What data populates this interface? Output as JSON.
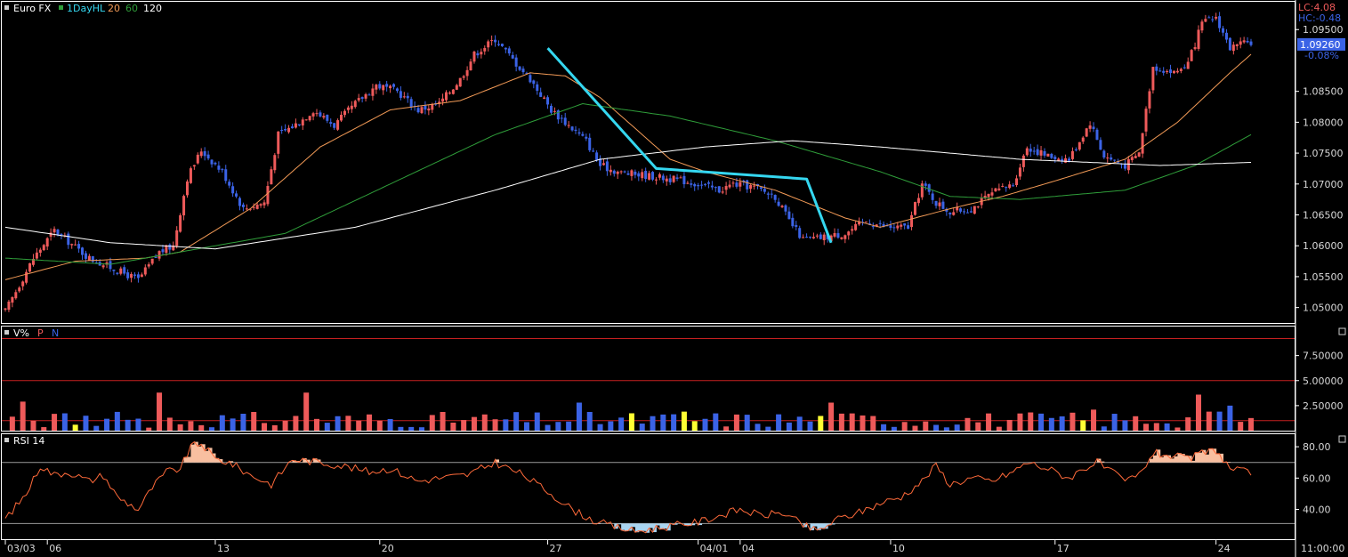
{
  "colors": {
    "background": "#000000",
    "up": "#ee5a5a",
    "down": "#3b63e6",
    "ma20": "#f29a56",
    "ma60": "#2f9e3a",
    "ma120": "#ffffff",
    "trendline": "#35d7f0",
    "volume_highlight": "#ffff33",
    "rsi": "#ff6a3a",
    "rsi_overbought_fill": "#f8bfa0",
    "rsi_oversold_fill": "#a9d4f0",
    "level_line": "#c62020",
    "price_tag": "#3b63e6"
  },
  "header": {
    "title": "Euro FX",
    "indicator": "1DayHL",
    "ma1": "20",
    "ma2": "60",
    "ma3": "120"
  },
  "price_info": {
    "lc": "LC:4.08",
    "hc": "HC:-0.48",
    "last": "1.09260",
    "change": "-0.08%"
  },
  "volume_panel": {
    "title": "V%",
    "p_label": "P",
    "n_label": "N"
  },
  "rsi_panel": {
    "title": "RSI 14"
  },
  "time_label": "11:00:00",
  "chart_data": [
    {
      "type": "candlestick",
      "title": "Euro FX",
      "x_ticks": [
        "03/03",
        "06",
        "13",
        "20",
        "27",
        "04/01",
        "04",
        "10",
        "17",
        "24"
      ],
      "y_ticks": [
        "1.09500",
        "1.08500",
        "1.08000",
        "1.07500",
        "1.07000",
        "1.06500",
        "1.06000",
        "1.05500",
        "1.05000"
      ],
      "ylim": [
        1.0475,
        1.0995
      ],
      "close_path": [
        [
          0,
          1.0494
        ],
        [
          8,
          1.058
        ],
        [
          14,
          1.0625
        ],
        [
          24,
          1.058
        ],
        [
          30,
          1.0565
        ],
        [
          38,
          1.0545
        ],
        [
          44,
          1.059
        ],
        [
          48,
          1.06
        ],
        [
          52,
          1.071
        ],
        [
          56,
          1.0755
        ],
        [
          62,
          1.072
        ],
        [
          68,
          1.066
        ],
        [
          74,
          1.067
        ],
        [
          78,
          1.078
        ],
        [
          84,
          1.08
        ],
        [
          88,
          1.082
        ],
        [
          94,
          1.0795
        ],
        [
          100,
          1.083
        ],
        [
          106,
          1.086
        ],
        [
          112,
          1.085
        ],
        [
          118,
          1.082
        ],
        [
          124,
          1.083
        ],
        [
          130,
          1.087
        ],
        [
          134,
          1.091
        ],
        [
          140,
          1.0935
        ],
        [
          146,
          1.0895
        ],
        [
          150,
          1.087
        ],
        [
          156,
          1.082
        ],
        [
          160,
          1.08
        ],
        [
          166,
          1.077
        ],
        [
          170,
          1.073
        ],
        [
          176,
          1.0718
        ],
        [
          182,
          1.0715
        ],
        [
          188,
          1.071
        ],
        [
          194,
          1.0705
        ],
        [
          198,
          1.07
        ],
        [
          204,
          1.069
        ],
        [
          208,
          1.07
        ],
        [
          214,
          1.0695
        ],
        [
          220,
          1.068
        ],
        [
          224,
          1.064
        ],
        [
          228,
          1.061
        ],
        [
          232,
          1.0612
        ],
        [
          240,
          1.062
        ],
        [
          246,
          1.064
        ],
        [
          252,
          1.063
        ],
        [
          258,
          1.063
        ],
        [
          262,
          1.07
        ],
        [
          266,
          1.067
        ],
        [
          270,
          1.0655
        ],
        [
          276,
          1.066
        ],
        [
          282,
          1.0685
        ],
        [
          288,
          1.07
        ],
        [
          292,
          1.076
        ],
        [
          298,
          1.0745
        ],
        [
          304,
          1.074
        ],
        [
          310,
          1.08
        ],
        [
          314,
          1.0745
        ],
        [
          320,
          1.073
        ],
        [
          324,
          1.075
        ],
        [
          328,
          1.089
        ],
        [
          334,
          1.088
        ],
        [
          338,
          1.0895
        ],
        [
          342,
          1.096
        ],
        [
          346,
          1.097
        ],
        [
          350,
          1.092
        ],
        [
          356,
          1.093
        ]
      ],
      "ma_paths": {
        "ma20": [
          [
            0,
            1.0545
          ],
          [
            20,
            1.0575
          ],
          [
            40,
            1.058
          ],
          [
            50,
            1.059
          ],
          [
            70,
            1.066
          ],
          [
            90,
            1.076
          ],
          [
            110,
            1.082
          ],
          [
            130,
            1.0835
          ],
          [
            150,
            1.088
          ],
          [
            160,
            1.0875
          ],
          [
            170,
            1.084
          ],
          [
            180,
            1.079
          ],
          [
            190,
            1.074
          ],
          [
            200,
            1.072
          ],
          [
            220,
            1.069
          ],
          [
            240,
            1.0645
          ],
          [
            250,
            1.063
          ],
          [
            270,
            1.066
          ],
          [
            285,
            1.068
          ],
          [
            300,
            1.0705
          ],
          [
            320,
            1.074
          ],
          [
            335,
            1.08
          ],
          [
            350,
            1.088
          ],
          [
            356,
            1.091
          ]
        ],
        "ma60": [
          [
            0,
            1.058
          ],
          [
            30,
            1.057
          ],
          [
            50,
            1.059
          ],
          [
            80,
            1.062
          ],
          [
            110,
            1.07
          ],
          [
            140,
            1.078
          ],
          [
            165,
            1.083
          ],
          [
            190,
            1.081
          ],
          [
            220,
            1.077
          ],
          [
            250,
            1.072
          ],
          [
            270,
            1.068
          ],
          [
            290,
            1.0675
          ],
          [
            320,
            1.069
          ],
          [
            340,
            1.073
          ],
          [
            356,
            1.078
          ]
        ],
        "ma120": [
          [
            0,
            1.063
          ],
          [
            30,
            1.0605
          ],
          [
            60,
            1.0595
          ],
          [
            100,
            1.063
          ],
          [
            140,
            1.069
          ],
          [
            170,
            1.074
          ],
          [
            200,
            1.076
          ],
          [
            225,
            1.077
          ],
          [
            250,
            1.076
          ],
          [
            270,
            1.075
          ],
          [
            290,
            1.074
          ],
          [
            310,
            1.0735
          ],
          [
            330,
            1.073
          ],
          [
            356,
            1.0735
          ]
        ]
      },
      "trendline": [
        [
          155,
          1.092
        ],
        [
          186,
          1.0725
        ],
        [
          229,
          1.0708
        ],
        [
          236,
          1.0605
        ]
      ],
      "last_price": 1.0926
    },
    {
      "type": "bar",
      "title": "V%",
      "y_ticks": [
        "7.50000",
        "5.00000",
        "2.50000"
      ],
      "ylim": [
        0,
        10.4
      ],
      "reference_lines": [
        9.2,
        5.0,
        1.0
      ]
    },
    {
      "type": "line",
      "title": "RSI 14",
      "y_ticks": [
        "80.00",
        "60.00",
        "40.00"
      ],
      "ylim": [
        21,
        88
      ],
      "overbought": 70,
      "oversold": 31,
      "series": [
        [
          0,
          34
        ],
        [
          6,
          50
        ],
        [
          10,
          68
        ],
        [
          14,
          62
        ],
        [
          18,
          64
        ],
        [
          24,
          58
        ],
        [
          28,
          62
        ],
        [
          32,
          48
        ],
        [
          38,
          40
        ],
        [
          42,
          54
        ],
        [
          46,
          64
        ],
        [
          50,
          66
        ],
        [
          53,
          80
        ],
        [
          56,
          82
        ],
        [
          60,
          72
        ],
        [
          64,
          70
        ],
        [
          70,
          62
        ],
        [
          76,
          56
        ],
        [
          82,
          72
        ],
        [
          90,
          70
        ],
        [
          96,
          68
        ],
        [
          104,
          64
        ],
        [
          110,
          66
        ],
        [
          118,
          58
        ],
        [
          124,
          60
        ],
        [
          132,
          62
        ],
        [
          140,
          70
        ],
        [
          148,
          62
        ],
        [
          156,
          50
        ],
        [
          162,
          40
        ],
        [
          168,
          33
        ],
        [
          174,
          29
        ],
        [
          180,
          26
        ],
        [
          186,
          28
        ],
        [
          192,
          30
        ],
        [
          198,
          32
        ],
        [
          204,
          36
        ],
        [
          210,
          40
        ],
        [
          216,
          36
        ],
        [
          222,
          38
        ],
        [
          228,
          30
        ],
        [
          232,
          26
        ],
        [
          238,
          34
        ],
        [
          244,
          38
        ],
        [
          250,
          44
        ],
        [
          256,
          48
        ],
        [
          262,
          58
        ],
        [
          266,
          68
        ],
        [
          270,
          56
        ],
        [
          276,
          60
        ],
        [
          282,
          58
        ],
        [
          288,
          64
        ],
        [
          292,
          70
        ],
        [
          298,
          66
        ],
        [
          304,
          60
        ],
        [
          308,
          66
        ],
        [
          312,
          70
        ],
        [
          316,
          64
        ],
        [
          320,
          58
        ],
        [
          324,
          62
        ],
        [
          328,
          76
        ],
        [
          334,
          74
        ],
        [
          338,
          72
        ],
        [
          342,
          76
        ],
        [
          346,
          78
        ],
        [
          350,
          66
        ],
        [
          356,
          63
        ]
      ]
    }
  ]
}
